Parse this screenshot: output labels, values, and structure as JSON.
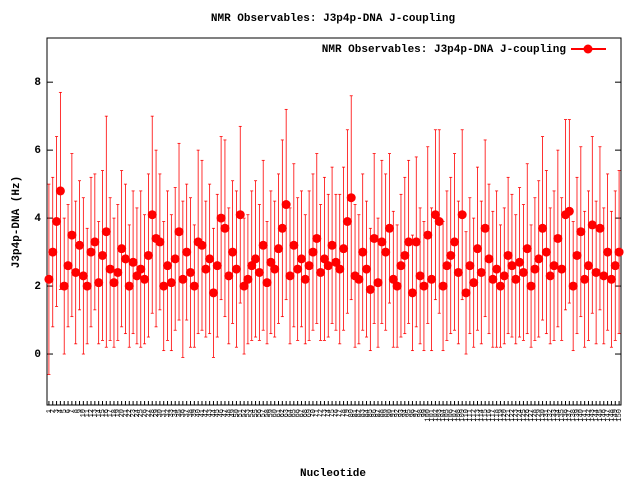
{
  "chart_data": {
    "type": "errorbar",
    "title": "NMR Observables: J3p4p-DNA J-coupling",
    "x_label": "Nucleotide",
    "y_label": "J3p4p-DNA (Hz)",
    "ylim": [
      -1.5,
      9.3
    ],
    "yticks": [
      0,
      2,
      4,
      6,
      8
    ],
    "legend": "top-right",
    "categories": [
      "1",
      "2",
      "3",
      "4",
      "5",
      "6",
      "7",
      "8",
      "9",
      "10",
      "11",
      "12",
      "13",
      "14",
      "15",
      "16",
      "17",
      "18",
      "19",
      "20",
      "21",
      "22",
      "23",
      "24",
      "25",
      "26",
      "27",
      "28",
      "29",
      "30",
      "31",
      "32",
      "33",
      "34",
      "35",
      "36",
      "37",
      "38",
      "39",
      "40",
      "41",
      "42",
      "43",
      "44",
      "45",
      "46",
      "47",
      "48",
      "49",
      "50",
      "51",
      "52",
      "53",
      "54",
      "55",
      "56",
      "57",
      "58",
      "59",
      "60",
      "61",
      "62",
      "63",
      "64",
      "65",
      "66",
      "67",
      "68",
      "69",
      "70",
      "71",
      "72",
      "73",
      "74",
      "75",
      "76",
      "77",
      "78",
      "79",
      "80",
      "81",
      "82",
      "83",
      "84",
      "85",
      "86",
      "87",
      "88",
      "89",
      "90",
      "91",
      "92",
      "93",
      "94",
      "95",
      "96",
      "97",
      "98",
      "99",
      "100",
      "101",
      "102",
      "103",
      "104",
      "105",
      "106",
      "107",
      "108",
      "109",
      "110",
      "111",
      "112",
      "113",
      "114",
      "115",
      "116",
      "117",
      "118",
      "119",
      "120",
      "121",
      "122",
      "123",
      "124",
      "125",
      "126",
      "127",
      "128",
      "129",
      "130",
      "131",
      "132",
      "133",
      "134",
      "135",
      "136",
      "137",
      "138",
      "139",
      "140",
      "141",
      "142",
      "143",
      "144",
      "145",
      "146",
      "147",
      "148",
      "149",
      "150"
    ],
    "series": [
      {
        "name": "NMR Observables: J3p4p-DNA J-coupling",
        "color": "#ff0000",
        "values": [
          2.2,
          3.0,
          3.9,
          4.8,
          2.0,
          2.6,
          3.5,
          2.4,
          3.2,
          2.3,
          2.0,
          3.0,
          3.3,
          2.1,
          2.9,
          3.6,
          2.5,
          2.1,
          2.4,
          3.1,
          2.8,
          2.0,
          2.7,
          2.3,
          2.5,
          2.2,
          2.9,
          4.1,
          3.4,
          3.3,
          2.0,
          2.6,
          2.1,
          2.8,
          3.6,
          2.2,
          3.0,
          2.4,
          2.0,
          3.3,
          3.2,
          2.5,
          2.8,
          1.8,
          2.6,
          4.0,
          3.7,
          2.3,
          3.0,
          2.5,
          4.1,
          2.0,
          2.2,
          2.6,
          2.8,
          2.4,
          3.2,
          2.1,
          2.7,
          2.5,
          3.1,
          3.7,
          4.4,
          2.3,
          3.2,
          2.5,
          2.8,
          2.2,
          2.6,
          3.0,
          3.4,
          2.4,
          2.8,
          2.6,
          3.2,
          2.7,
          2.5,
          3.1,
          3.9,
          4.6,
          2.3,
          2.2,
          3.0,
          2.5,
          1.9,
          3.4,
          2.1,
          3.3,
          3.0,
          3.7,
          2.2,
          2.0,
          2.6,
          2.9,
          3.3,
          1.8,
          3.3,
          2.3,
          2.0,
          3.5,
          2.2,
          4.1,
          3.9,
          2.0,
          2.6,
          2.9,
          3.3,
          2.4,
          4.1,
          1.8,
          2.6,
          2.1,
          3.1,
          2.4,
          3.7,
          2.8,
          2.2,
          2.5,
          2.0,
          2.3,
          2.9,
          2.6,
          2.2,
          2.7,
          2.4,
          3.1,
          2.0,
          2.5,
          2.8,
          3.7,
          3.0,
          2.3,
          2.6,
          3.4,
          2.5,
          4.1,
          4.2,
          2.0,
          2.9,
          3.6,
          2.2,
          2.6,
          3.8,
          2.4,
          3.7,
          2.3,
          3.0,
          2.2,
          2.6,
          3.0
        ],
        "errors": [
          2.8,
          2.2,
          2.5,
          2.9,
          2.0,
          1.8,
          2.4,
          2.1,
          1.9,
          2.3,
          1.7,
          2.2,
          2.0,
          1.8,
          2.5,
          3.4,
          2.1,
          1.9,
          2.0,
          2.3,
          2.2,
          1.8,
          2.1,
          2.0,
          2.3,
          1.9,
          2.4,
          2.9,
          2.6,
          2.0,
          1.9,
          2.2,
          2.0,
          2.1,
          2.6,
          2.3,
          2.0,
          2.2,
          1.8,
          2.7,
          2.5,
          2.0,
          2.2,
          1.9,
          2.1,
          2.4,
          2.6,
          2.0,
          2.1,
          2.3,
          2.6,
          2.0,
          1.9,
          2.2,
          2.3,
          2.0,
          2.5,
          1.8,
          2.1,
          2.0,
          2.2,
          2.6,
          2.8,
          2.0,
          2.4,
          2.1,
          2.0,
          1.9,
          2.2,
          2.3,
          2.5,
          2.0,
          2.4,
          2.1,
          2.3,
          2.0,
          2.2,
          2.4,
          2.7,
          3.0,
          2.1,
          1.9,
          2.3,
          2.0,
          1.8,
          2.5,
          1.9,
          2.4,
          2.3,
          2.2,
          2.0,
          1.8,
          2.1,
          2.3,
          2.4,
          1.7,
          2.5,
          2.0,
          1.9,
          2.6,
          2.1,
          2.5,
          2.7,
          1.9,
          2.2,
          2.3,
          2.6,
          2.1,
          2.5,
          1.8,
          2.0,
          1.9,
          2.4,
          2.1,
          2.6,
          2.2,
          2.0,
          2.3,
          1.8,
          2.0,
          2.3,
          2.1,
          1.9,
          2.2,
          2.0,
          2.5,
          1.8,
          2.1,
          2.3,
          2.7,
          2.4,
          2.0,
          2.2,
          2.6,
          2.1,
          2.8,
          2.7,
          1.9,
          2.3,
          2.5,
          2.0,
          2.2,
          2.6,
          2.1,
          2.4,
          2.0,
          2.3,
          2.0,
          2.2,
          2.4
        ]
      }
    ]
  }
}
